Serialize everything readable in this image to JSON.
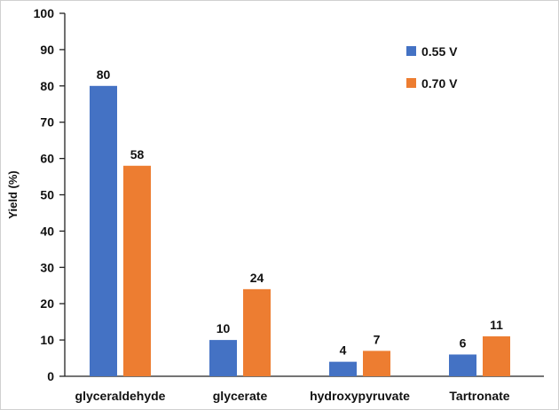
{
  "chart_data": {
    "type": "bar",
    "categories": [
      "glyceraldehyde",
      "glycerate",
      "hydroxypyruvate",
      "Tartronate"
    ],
    "series": [
      {
        "name": "0.55 V",
        "values": [
          80,
          10,
          4,
          6
        ],
        "color": "#4472C4"
      },
      {
        "name": "0.70 V",
        "values": [
          58,
          24,
          7,
          11
        ],
        "color": "#ED7D31"
      }
    ],
    "title": "",
    "xlabel": "",
    "ylabel": "Yield (%)",
    "ylim": [
      0,
      100
    ],
    "yticks": [
      0,
      10,
      20,
      30,
      40,
      50,
      60,
      70,
      80,
      90,
      100
    ],
    "grid": false,
    "legend": "top-right"
  }
}
